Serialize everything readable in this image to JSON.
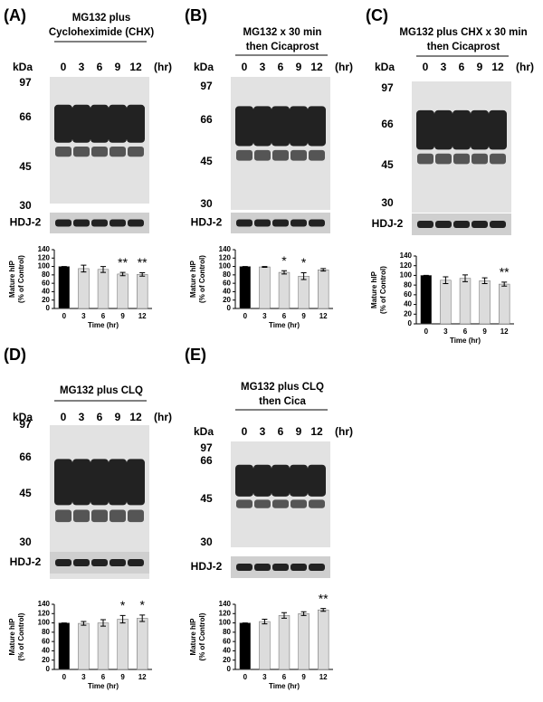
{
  "chart_data": [
    {
      "type": "bar",
      "panel": "(A)",
      "title": [
        "MG132 plus",
        "Cycloheximide (CHX)"
      ],
      "unit": "kDa",
      "markers": [
        "97",
        "66",
        "45",
        "30"
      ],
      "lanes": [
        "0",
        "3",
        "6",
        "9",
        "12"
      ],
      "time_unit": "(hr)",
      "loading_control": "HDJ-2",
      "ylabel": [
        "Mature hIP",
        "(% of Control)"
      ],
      "xlabel": "Time (hr)",
      "categories": [
        "0",
        "3",
        "6",
        "9",
        "12"
      ],
      "values": [
        100,
        95,
        93,
        82,
        81
      ],
      "errors": [
        0,
        8,
        7,
        4,
        4
      ],
      "significance": [
        null,
        null,
        null,
        "**",
        "**"
      ],
      "colors": [
        "#000000",
        "#dcdcdc",
        "#dcdcdc",
        "#dcdcdc",
        "#dcdcdc"
      ],
      "ylim": [
        0,
        140
      ],
      "yticks": [
        0,
        20,
        40,
        60,
        80,
        100,
        120,
        140
      ]
    },
    {
      "type": "bar",
      "panel": "(B)",
      "title": [
        "MG132 x 30 min",
        "then Cicaprost"
      ],
      "unit": "kDa",
      "markers": [
        "97",
        "66",
        "45",
        "30"
      ],
      "lanes": [
        "0",
        "3",
        "6",
        "9",
        "12"
      ],
      "time_unit": "(hr)",
      "loading_control": "HDJ-2",
      "ylabel": [
        "Mature hIP",
        "(% of Control)"
      ],
      "xlabel": "Time (hr)",
      "categories": [
        "0",
        "3",
        "6",
        "9",
        "12"
      ],
      "values": [
        100,
        99,
        86,
        77,
        92
      ],
      "errors": [
        0,
        1,
        4,
        8,
        3
      ],
      "significance": [
        null,
        null,
        "*",
        "*",
        null
      ],
      "colors": [
        "#000000",
        "#dcdcdc",
        "#dcdcdc",
        "#dcdcdc",
        "#dcdcdc"
      ],
      "ylim": [
        0,
        140
      ],
      "yticks": [
        0,
        20,
        40,
        60,
        80,
        100,
        120,
        140
      ]
    },
    {
      "type": "bar",
      "panel": "(C)",
      "title": [
        "MG132 plus CHX x 30 min",
        "then Cicaprost"
      ],
      "unit": "kDa",
      "markers": [
        "97",
        "66",
        "45",
        "30"
      ],
      "lanes": [
        "0",
        "3",
        "6",
        "9",
        "12"
      ],
      "time_unit": "(hr)",
      "loading_control": "HDJ-2",
      "ylabel": [
        "Mature hIP",
        "(% of Control)"
      ],
      "xlabel": "Time (hr)",
      "categories": [
        "0",
        "3",
        "6",
        "9",
        "12"
      ],
      "values": [
        100,
        90,
        94,
        89,
        82
      ],
      "errors": [
        0,
        7,
        7,
        6,
        4
      ],
      "significance": [
        null,
        null,
        null,
        null,
        "**"
      ],
      "colors": [
        "#000000",
        "#dcdcdc",
        "#dcdcdc",
        "#dcdcdc",
        "#dcdcdc"
      ],
      "ylim": [
        0,
        140
      ],
      "yticks": [
        0,
        20,
        40,
        60,
        80,
        100,
        120,
        140
      ]
    },
    {
      "type": "bar",
      "panel": "(D)",
      "title": [
        "MG132 plus CLQ"
      ],
      "unit": "kDa",
      "markers": [
        "97",
        "66",
        "45",
        "30"
      ],
      "lanes": [
        "0",
        "3",
        "6",
        "9",
        "12"
      ],
      "time_unit": "(hr)",
      "loading_control": "HDJ-2",
      "ylabel": [
        "Mature hIP",
        "(% of Control)"
      ],
      "xlabel": "Time (hr)",
      "categories": [
        "0",
        "3",
        "6",
        "9",
        "12"
      ],
      "values": [
        100,
        99,
        100,
        108,
        110
      ],
      "errors": [
        0,
        4,
        7,
        8,
        7
      ],
      "significance": [
        null,
        null,
        null,
        "*",
        "*"
      ],
      "colors": [
        "#000000",
        "#dcdcdc",
        "#dcdcdc",
        "#dcdcdc",
        "#dcdcdc"
      ],
      "ylim": [
        0,
        140
      ],
      "yticks": [
        0,
        20,
        40,
        60,
        80,
        100,
        120,
        140
      ]
    },
    {
      "type": "bar",
      "panel": "(E)",
      "title": [
        "MG132 plus CLQ",
        "then Cica"
      ],
      "unit": "kDa",
      "markers": [
        "97",
        "66",
        "45",
        "30"
      ],
      "lanes": [
        "0",
        "3",
        "6",
        "9",
        "12"
      ],
      "time_unit": "(hr)",
      "loading_control": "HDJ-2",
      "ylabel": [
        "Mature hIP",
        "(% of Control)"
      ],
      "xlabel": "Time (hr)",
      "categories": [
        "0",
        "3",
        "6",
        "9",
        "12"
      ],
      "values": [
        100,
        103,
        116,
        120,
        128
      ],
      "errors": [
        0,
        5,
        6,
        4,
        3
      ],
      "significance": [
        null,
        null,
        null,
        null,
        "**"
      ],
      "colors": [
        "#000000",
        "#dcdcdc",
        "#dcdcdc",
        "#dcdcdc",
        "#dcdcdc"
      ],
      "ylim": [
        0,
        140
      ],
      "yticks": [
        0,
        20,
        40,
        60,
        80,
        100,
        120,
        140
      ]
    }
  ]
}
